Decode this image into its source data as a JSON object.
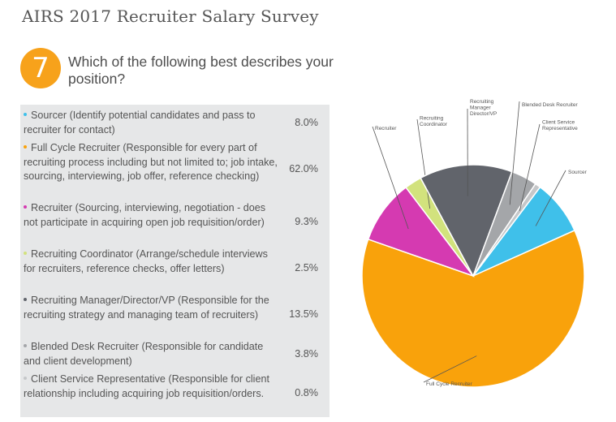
{
  "header": {
    "title": "AIRS 2017 Recruiter Salary Survey"
  },
  "question": {
    "number": "7",
    "text": "Which of the following best describes your position?"
  },
  "answers": [
    {
      "text": "Sourcer (Identify potential candidates and pass to recruiter for contact)",
      "pct": "8.0%",
      "color": "#3fc0ea"
    },
    {
      "text": "Full Cycle Recruiter (Responsible for every part of recruiting process including but not limited to;  job intake, sourcing, interviewing, job offer, reference checking)",
      "pct": "62.0%",
      "color": "#f9a20b"
    },
    {
      "text": "Recruiter (Sourcing, interviewing, negotiation - does not participate in acquiring open job requisition/order)",
      "pct": "9.3%",
      "color": "#d53ab1"
    },
    {
      "text": "Recruiting Coordinator (Arrange/schedule interviews for recruiters, reference checks, offer letters)",
      "pct": "2.5%",
      "color": "#d2e27d"
    },
    {
      "text": "Recruiting Manager/Director/VP (Responsible for the recruiting strategy and managing team of recruiters)",
      "pct": "13.5%",
      "color": "#61646b"
    },
    {
      "text": "Blended Desk Recruiter (Responsible for candidate and client development)",
      "pct": "3.8%",
      "color": "#a4a6a9"
    },
    {
      "text": "Client Service Representative (Responsible for client relationship including acquiring job requisition/orders.",
      "pct": "0.8%",
      "color": "#c5c7c9"
    }
  ],
  "chart_data": {
    "type": "pie",
    "slices": [
      {
        "label": "Sourcer",
        "value": 8.0,
        "color": "#3fc0ea"
      },
      {
        "label": "Full Cycle Recruiter",
        "value": 62.0,
        "color": "#f9a20b"
      },
      {
        "label": "Recruiter",
        "value": 9.3,
        "color": "#d53ab1"
      },
      {
        "label": "Recruiting Coordinator",
        "value": 2.5,
        "color": "#d2e27d"
      },
      {
        "label": "Recruiting Manager Director/VP",
        "value": 13.5,
        "color": "#61646b"
      },
      {
        "label": "Blended Desk Recruiter",
        "value": 3.8,
        "color": "#a4a6a9"
      },
      {
        "label": "Client Service Representative",
        "value": 0.8,
        "color": "#c5c7c9"
      }
    ],
    "legend": "none"
  }
}
